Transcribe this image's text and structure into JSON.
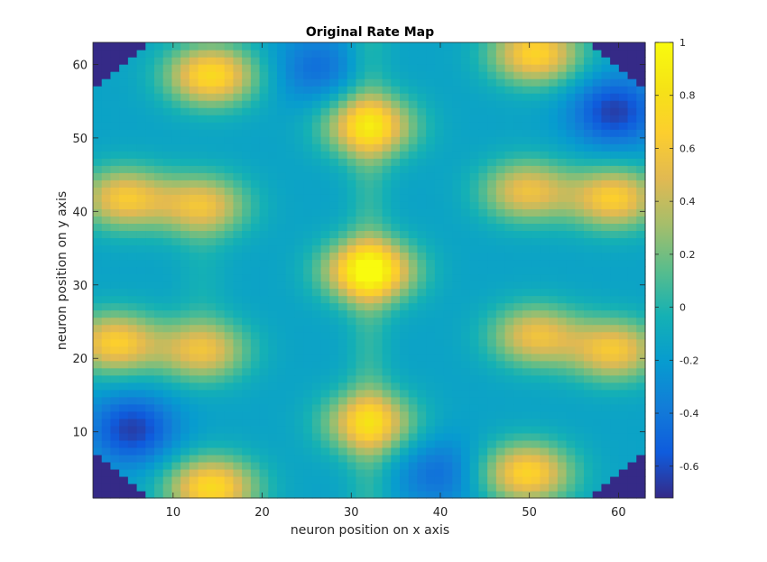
{
  "chart_data": {
    "type": "heatmap",
    "title": "Original Rate Map",
    "xlabel": "neuron position on x axis",
    "ylabel": "neuron position on y axis",
    "xlim": [
      1,
      63
    ],
    "ylim": [
      1,
      63
    ],
    "grid_size": 63,
    "xticks": [
      10,
      20,
      30,
      40,
      50,
      60
    ],
    "yticks": [
      10,
      20,
      30,
      40,
      50,
      60
    ],
    "colorbar": {
      "limits": [
        -0.72,
        1.0
      ],
      "ticks": [
        -0.6,
        -0.4,
        -0.2,
        0,
        0.2,
        0.4,
        0.6,
        0.8,
        1
      ],
      "tick_labels": [
        "-0.6",
        "-0.4",
        "-0.2",
        "0",
        "0.2",
        "0.4",
        "0.6",
        "0.8",
        "1"
      ],
      "colormap": "parula"
    },
    "mask": {
      "shape": "octagon-disk",
      "outside_value": -0.72,
      "corner_cut_cells": 6
    },
    "background_level": -0.1,
    "peaks": [
      {
        "x": 32,
        "y": 32,
        "value": 1.0
      },
      {
        "x": 32,
        "y": 52,
        "value": 0.78
      },
      {
        "x": 32,
        "y": 11,
        "value": 0.7
      },
      {
        "x": 13,
        "y": 41,
        "value": 0.6
      },
      {
        "x": 13,
        "y": 21,
        "value": 0.6
      },
      {
        "x": 50,
        "y": 43,
        "value": 0.6
      },
      {
        "x": 51,
        "y": 23,
        "value": 0.6
      },
      {
        "x": 4,
        "y": 42,
        "value": 0.65
      },
      {
        "x": 3,
        "y": 22,
        "value": 0.7
      },
      {
        "x": 60,
        "y": 42,
        "value": 0.7
      },
      {
        "x": 60,
        "y": 21,
        "value": 0.65
      },
      {
        "x": 14,
        "y": 59,
        "value": 0.8
      },
      {
        "x": 14,
        "y": 2,
        "value": 0.8
      },
      {
        "x": 51,
        "y": 62,
        "value": 0.75
      },
      {
        "x": 50,
        "y": 4,
        "value": 0.75
      }
    ],
    "troughs": [
      {
        "x": 5,
        "y": 10,
        "value": -0.6
      },
      {
        "x": 60,
        "y": 54,
        "value": -0.6
      },
      {
        "x": 26,
        "y": 60,
        "value": -0.4
      },
      {
        "x": 40,
        "y": 4,
        "value": -0.4
      }
    ]
  }
}
